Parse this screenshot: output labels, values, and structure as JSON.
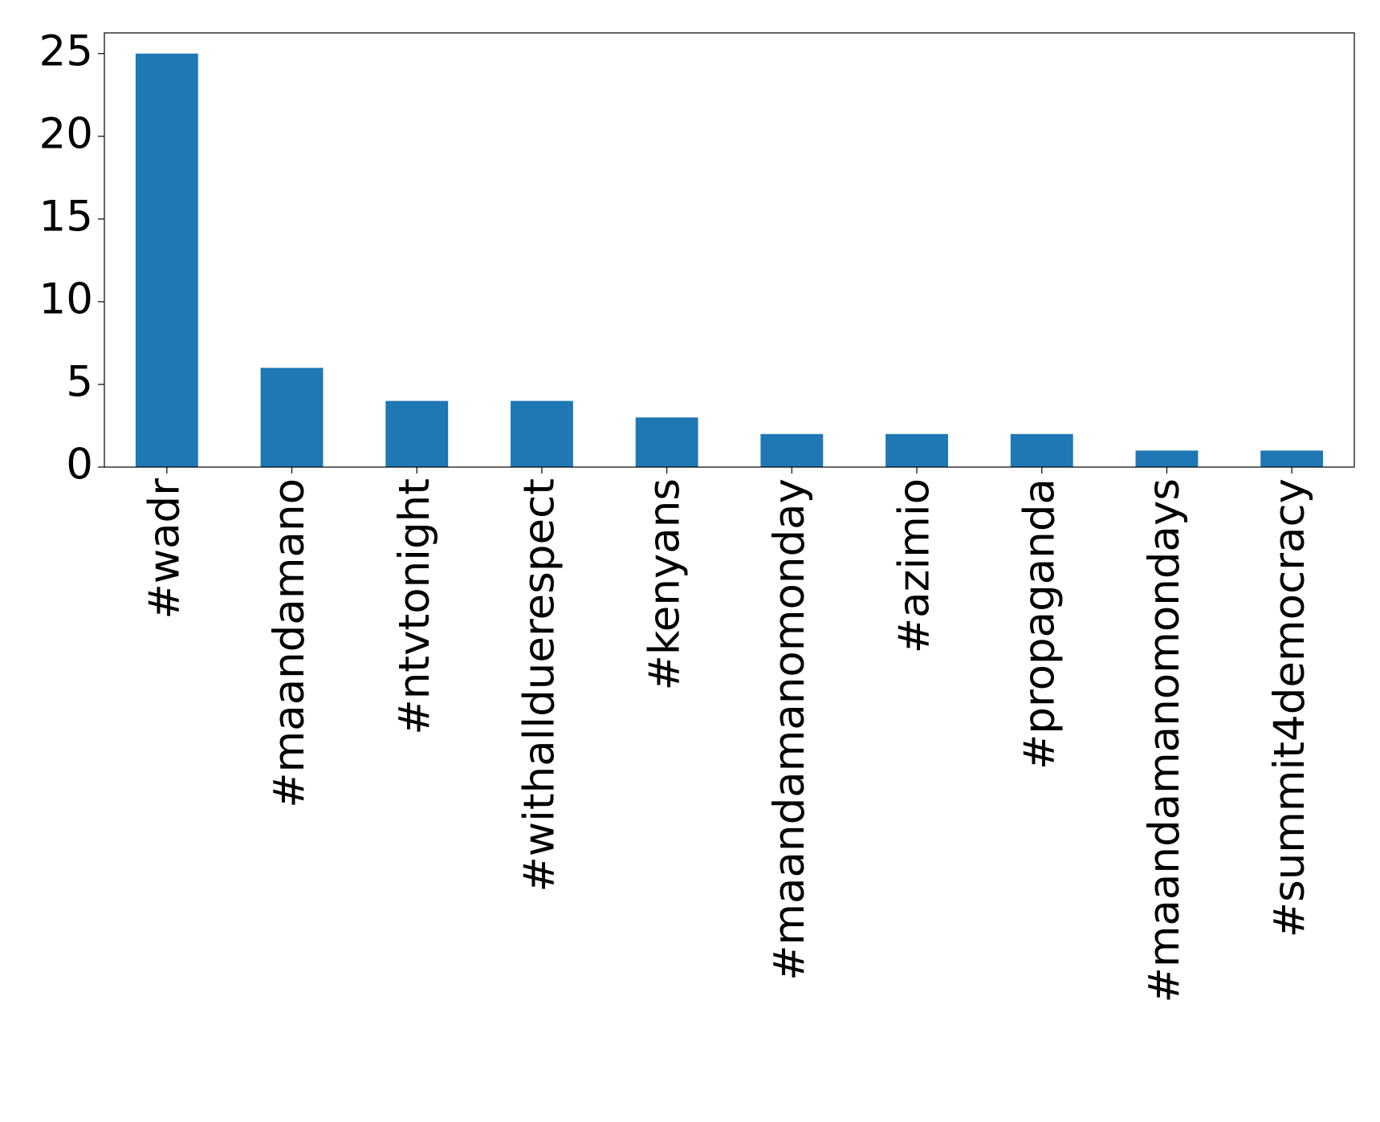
{
  "chart_data": {
    "type": "bar",
    "categories": [
      "#wadr",
      "#maandamano",
      "#ntvtonight",
      "#withallduerespect",
      "#kenyans",
      "#maandamanomonday",
      "#azimio",
      "#propaganda",
      "#maandamanomondays",
      "#summit4democracy"
    ],
    "values": [
      25,
      6,
      4,
      4,
      3,
      2,
      2,
      2,
      1,
      1
    ],
    "color": "#1f77b4",
    "ylim": [
      0,
      26.25
    ],
    "yticks": [
      0,
      5,
      10,
      15,
      20,
      25
    ],
    "grid": false
  }
}
